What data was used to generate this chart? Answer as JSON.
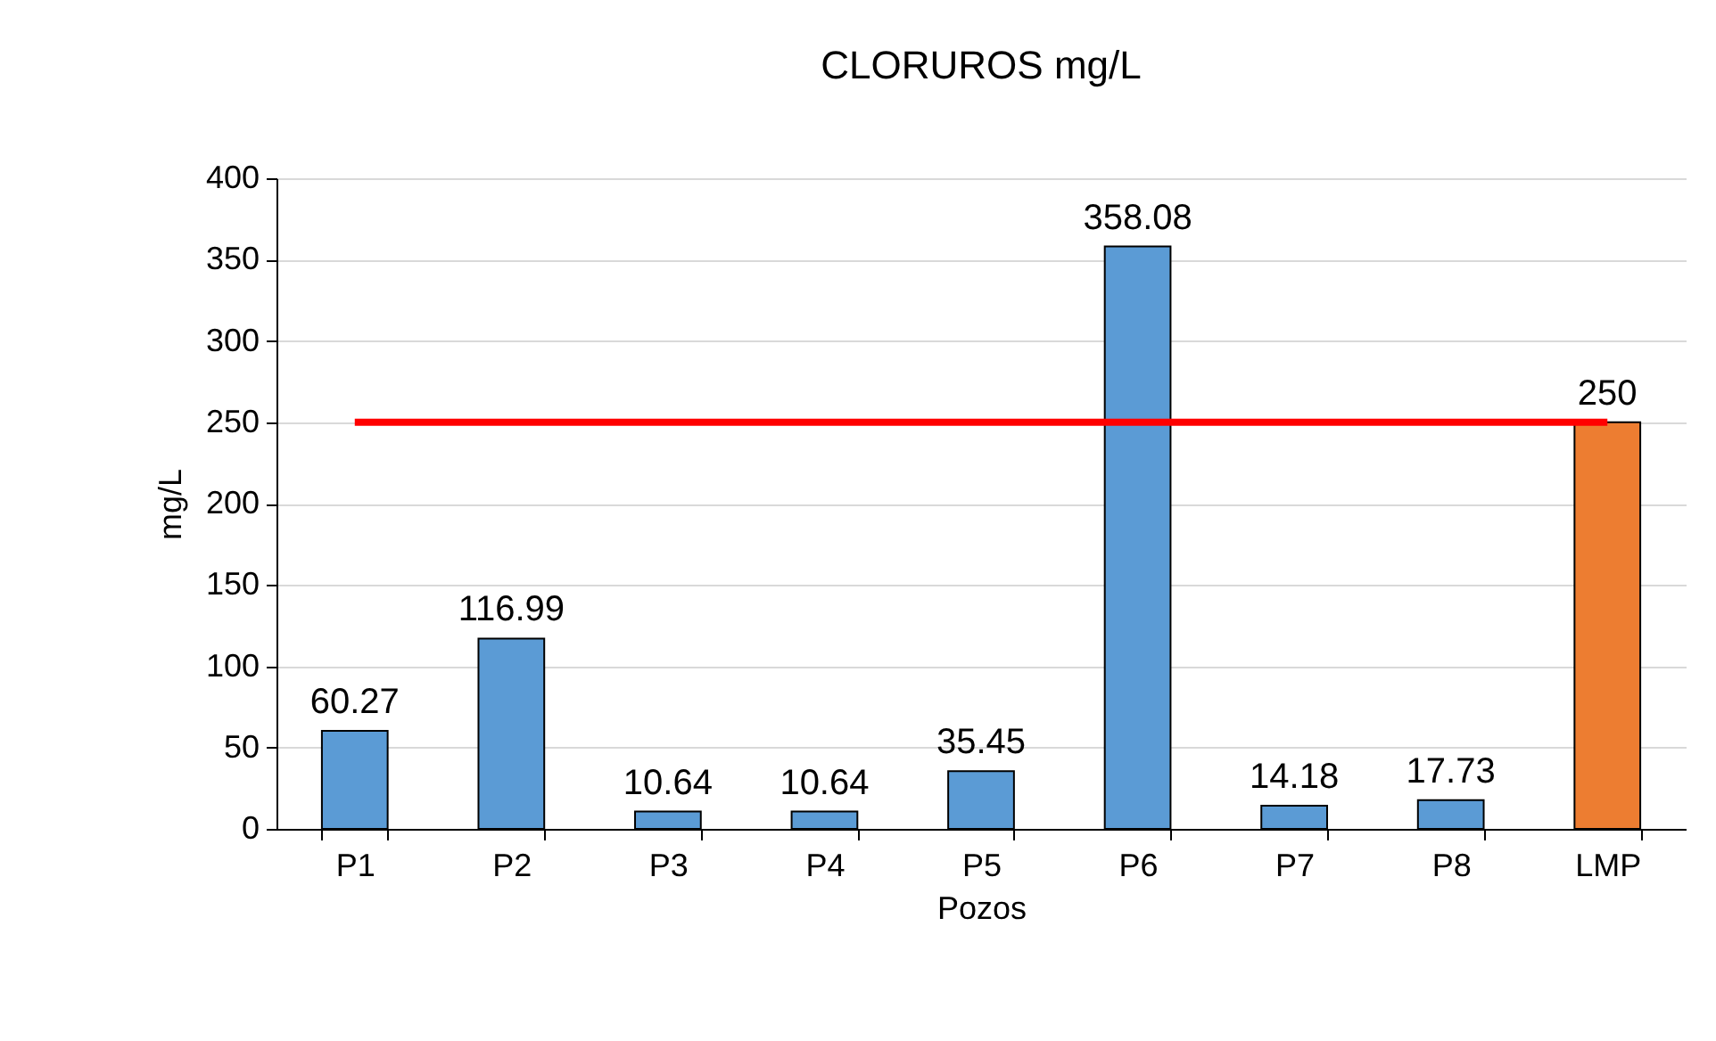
{
  "chart_data": {
    "type": "bar",
    "title": "CLORUROS mg/L",
    "xlabel": "Pozos",
    "ylabel": "mg/L",
    "categories": [
      "P1",
      "P2",
      "P3",
      "P4",
      "P5",
      "P6",
      "P7",
      "P8",
      "LMP"
    ],
    "series": [
      {
        "values": [
          60.27,
          116.99,
          10.64,
          10.64,
          35.45,
          358.08,
          14.18,
          17.73,
          250
        ],
        "value_labels": [
          "60.27",
          "116.99",
          "10.64",
          "10.64",
          "35.45",
          "358.08",
          "14.18",
          "17.73",
          "250"
        ],
        "colors": [
          "#5b9bd5",
          "#5b9bd5",
          "#5b9bd5",
          "#5b9bd5",
          "#5b9bd5",
          "#5b9bd5",
          "#5b9bd5",
          "#5b9bd5",
          "#ed7d31"
        ]
      },
      {
        "type": "line",
        "values": [
          250,
          250,
          250,
          250,
          250,
          250,
          250,
          250,
          250
        ],
        "color": "#ff0000"
      }
    ],
    "ylim": [
      0,
      400
    ],
    "yticks": [
      0,
      50,
      100,
      150,
      200,
      250,
      300,
      350,
      400
    ],
    "grid": "y",
    "marker": "none",
    "line_style": "solid"
  }
}
